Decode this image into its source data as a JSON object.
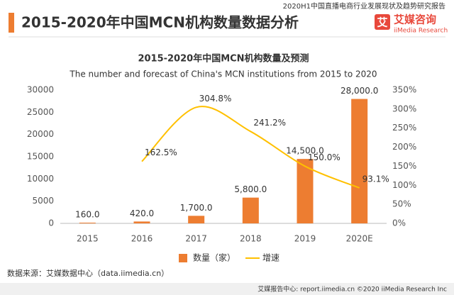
{
  "report_name": "2020H1中国直播电商行业发展现状及趋势研究报告",
  "page_title": "2015-2020年中国MCN机构数量数据分析",
  "logo": {
    "stamp": "艾",
    "name": "艾媒咨询",
    "english": "iiMedia Research"
  },
  "chart_data": {
    "type": "bar",
    "title": "2015-2020年中国MCN机构数量及预测",
    "subtitle": "The number and forecast of China's MCN institutions from 2015 to 2020",
    "categories": [
      "2015",
      "2016",
      "2017",
      "2018",
      "2019",
      "2020E"
    ],
    "series": [
      {
        "name": "数量（家）",
        "type": "bar",
        "color": "#ED7D31",
        "values": [
          160,
          420,
          1700,
          5800,
          14500,
          28000
        ],
        "value_labels": [
          "160.0",
          "420.0",
          "1,700.0",
          "5,800.0",
          "14,500.0",
          "28,000.0"
        ]
      },
      {
        "name": "增速",
        "type": "line",
        "axis": "y2",
        "color": "#FFC000",
        "values": [
          null,
          162.5,
          304.8,
          241.2,
          150.0,
          93.1
        ],
        "value_labels": [
          null,
          "162.5%",
          "304.8%",
          "241.2%",
          "150.0%",
          "93.1%"
        ]
      }
    ],
    "ylim": [
      0,
      30000
    ],
    "yticks": [
      0,
      5000,
      10000,
      15000,
      20000,
      25000,
      30000
    ],
    "y2lim": [
      0,
      350
    ],
    "y2ticks": [
      {
        "value": 0,
        "label": "0%"
      },
      {
        "value": 50,
        "label": "50%"
      },
      {
        "value": 100,
        "label": "100%"
      },
      {
        "value": 150,
        "label": "150%"
      },
      {
        "value": 200,
        "label": "200%"
      },
      {
        "value": 250,
        "label": "250%"
      },
      {
        "value": 300,
        "label": "300%"
      },
      {
        "value": 350,
        "label": "350%"
      }
    ],
    "grid": false,
    "legend": "bottom"
  },
  "source": "数据来源：艾媒数据中心（data.iimedia.cn）",
  "footer": "艾媒报告中心: report.iimedia.cn ©2020  iiMedia Research  Inc"
}
